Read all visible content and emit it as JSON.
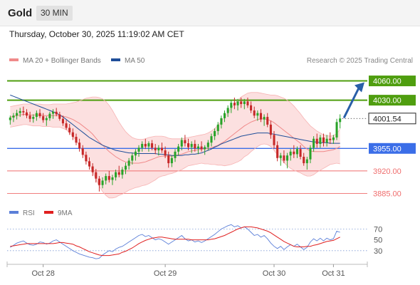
{
  "header": {
    "symbol": "Gold",
    "timeframe": "30 MIN"
  },
  "timestamp": "Thursday, October 30, 2025 11:19:02 AM CET",
  "legend": {
    "items": [
      {
        "label": "MA 20 + Bollinger Bands",
        "color": "#f08a8a"
      },
      {
        "label": "MA 50",
        "color": "#1f4e99"
      }
    ],
    "credit": "Research © 2025 Trading Central"
  },
  "rsi_legend": {
    "items": [
      {
        "label": "RSI",
        "color": "#5b7fd8"
      },
      {
        "label": "9MA",
        "color": "#e02020"
      }
    ]
  },
  "colors": {
    "up": "#29a329",
    "down": "#c62828",
    "resistance": "#4f9e0f",
    "support": "#3b6ee8",
    "minor_support": "#ef6c6c",
    "arrow": "#2a5fa8"
  },
  "chart_data": [
    {
      "type": "candlestick",
      "title": "Gold",
      "timeframe": "30 MIN",
      "ylim": [
        3870,
        4075
      ],
      "x_ticks": [
        "Oct 28",
        "Oct 29",
        "Oct 30",
        "Oct 31"
      ],
      "candles": [
        [
          3999,
          4006,
          3992,
          4003
        ],
        [
          4003,
          4010,
          3996,
          4006
        ],
        [
          4006,
          4015,
          4000,
          4010
        ],
        [
          4010,
          4018,
          4004,
          4013
        ],
        [
          4013,
          4020,
          4006,
          4011
        ],
        [
          4011,
          4016,
          4002,
          4006
        ],
        [
          4006,
          4012,
          3996,
          4001
        ],
        [
          4001,
          4008,
          3995,
          4004
        ],
        [
          4004,
          4014,
          3998,
          4010
        ],
        [
          4010,
          4016,
          4002,
          4005
        ],
        [
          4005,
          4010,
          3995,
          3999
        ],
        [
          3999,
          4005,
          3990,
          4002
        ],
        [
          4002,
          4012,
          3998,
          4009
        ],
        [
          4009,
          4016,
          4001,
          4012
        ],
        [
          4012,
          4018,
          4005,
          4008
        ],
        [
          4008,
          4012,
          3998,
          4001
        ],
        [
          4001,
          4006,
          3990,
          3994
        ],
        [
          3994,
          3999,
          3984,
          3987
        ],
        [
          3987,
          3993,
          3976,
          3980
        ],
        [
          3980,
          3986,
          3968,
          3973
        ],
        [
          3973,
          3978,
          3960,
          3964
        ],
        [
          3964,
          3970,
          3950,
          3955
        ],
        [
          3955,
          3960,
          3940,
          3945
        ],
        [
          3945,
          3950,
          3930,
          3935
        ],
        [
          3935,
          3941,
          3922,
          3927
        ],
        [
          3927,
          3932,
          3912,
          3918
        ],
        [
          3918,
          3923,
          3902,
          3908
        ],
        [
          3908,
          3912,
          3888,
          3898
        ],
        [
          3898,
          3910,
          3893,
          3905
        ],
        [
          3905,
          3916,
          3899,
          3912
        ],
        [
          3912,
          3920,
          3902,
          3906
        ],
        [
          3906,
          3914,
          3898,
          3910
        ],
        [
          3910,
          3922,
          3905,
          3918
        ],
        [
          3918,
          3928,
          3910,
          3914
        ],
        [
          3914,
          3926,
          3908,
          3922
        ],
        [
          3922,
          3933,
          3915,
          3928
        ],
        [
          3928,
          3940,
          3922,
          3936
        ],
        [
          3936,
          3948,
          3930,
          3944
        ],
        [
          3944,
          3954,
          3936,
          3950
        ],
        [
          3950,
          3960,
          3942,
          3956
        ],
        [
          3956,
          3966,
          3950,
          3962
        ],
        [
          3962,
          3970,
          3954,
          3958
        ],
        [
          3958,
          3966,
          3950,
          3963
        ],
        [
          3963,
          3968,
          3952,
          3956
        ],
        [
          3956,
          3962,
          3946,
          3952
        ],
        [
          3952,
          3960,
          3944,
          3956
        ],
        [
          3956,
          3964,
          3948,
          3952
        ],
        [
          3952,
          3958,
          3940,
          3944
        ],
        [
          3944,
          3950,
          3925,
          3932
        ],
        [
          3932,
          3944,
          3926,
          3940
        ],
        [
          3940,
          3954,
          3934,
          3950
        ],
        [
          3950,
          3962,
          3944,
          3958
        ],
        [
          3958,
          3972,
          3952,
          3968
        ],
        [
          3968,
          3976,
          3958,
          3963
        ],
        [
          3963,
          3970,
          3952,
          3957
        ],
        [
          3957,
          3966,
          3948,
          3962
        ],
        [
          3962,
          3968,
          3950,
          3955
        ],
        [
          3955,
          3962,
          3946,
          3958
        ],
        [
          3958,
          3966,
          3950,
          3954
        ],
        [
          3954,
          3960,
          3945,
          3957
        ],
        [
          3957,
          3968,
          3952,
          3964
        ],
        [
          3964,
          3978,
          3958,
          3974
        ],
        [
          3974,
          3986,
          3968,
          3982
        ],
        [
          3982,
          3996,
          3976,
          3992
        ],
        [
          3992,
          4006,
          3986,
          4002
        ],
        [
          4002,
          4014,
          3996,
          4010
        ],
        [
          4010,
          4022,
          4004,
          4018
        ],
        [
          4018,
          4030,
          4010,
          4026
        ],
        [
          4026,
          4034,
          4016,
          4022
        ],
        [
          4022,
          4032,
          4014,
          4028
        ],
        [
          4028,
          4034,
          4018,
          4024
        ],
        [
          4024,
          4032,
          4016,
          4028
        ],
        [
          4028,
          4034,
          4018,
          4022
        ],
        [
          4022,
          4028,
          4010,
          4014
        ],
        [
          4014,
          4020,
          4002,
          4006
        ],
        [
          4006,
          4014,
          3998,
          4010
        ],
        [
          4010,
          4016,
          3996,
          4000
        ],
        [
          4000,
          4008,
          3990,
          4004
        ],
        [
          4004,
          4010,
          3988,
          3992
        ],
        [
          3992,
          3998,
          3970,
          3976
        ],
        [
          3976,
          3982,
          3955,
          3960
        ],
        [
          3960,
          3966,
          3935,
          3940
        ],
        [
          3940,
          3948,
          3928,
          3944
        ],
        [
          3944,
          3952,
          3932,
          3936
        ],
        [
          3936,
          3948,
          3924,
          3944
        ],
        [
          3944,
          3954,
          3936,
          3950
        ],
        [
          3950,
          3960,
          3940,
          3946
        ],
        [
          3946,
          3958,
          3940,
          3954
        ],
        [
          3954,
          3960,
          3938,
          3942
        ],
        [
          3942,
          3948,
          3928,
          3932
        ],
        [
          3932,
          3942,
          3922,
          3938
        ],
        [
          3938,
          3960,
          3932,
          3956
        ],
        [
          3956,
          3974,
          3950,
          3970
        ],
        [
          3970,
          3978,
          3956,
          3962
        ],
        [
          3962,
          3976,
          3956,
          3972
        ],
        [
          3972,
          3978,
          3958,
          3964
        ],
        [
          3964,
          3976,
          3958,
          3970
        ],
        [
          3970,
          3980,
          3962,
          3968
        ],
        [
          3968,
          3976,
          3962,
          3972
        ],
        [
          3972,
          4001,
          3968,
          3996
        ],
        [
          3996,
          4008,
          3986,
          4001.54
        ]
      ],
      "ma20": [
        4004,
        4005,
        4006,
        4007,
        4008,
        4008,
        4007,
        4007,
        4007,
        4007,
        4006,
        4006,
        4006,
        4006,
        4006,
        4006,
        4005,
        4004,
        4002,
        4000,
        3997,
        3994,
        3990,
        3986,
        3982,
        3977,
        3971,
        3965,
        3960,
        3955,
        3950,
        3946,
        3942,
        3939,
        3936,
        3934,
        3933,
        3932,
        3932,
        3932,
        3933,
        3934,
        3936,
        3938,
        3940,
        3942,
        3943,
        3943,
        3943,
        3943,
        3944,
        3945,
        3946,
        3948,
        3950,
        3951,
        3952,
        3953,
        3954,
        3954,
        3955,
        3956,
        3958,
        3960,
        3963,
        3966,
        3970,
        3974,
        3978,
        3982,
        3986,
        3990,
        3993,
        3996,
        3998,
        4000,
        4001,
        4001,
        4000,
        3998,
        3995,
        3991,
        3987,
        3983,
        3979,
        3975,
        3971,
        3967,
        3963,
        3958,
        3954,
        3951,
        3950,
        3950,
        3950,
        3950,
        3951,
        3952,
        3953,
        3955,
        3958
      ],
      "bb_upper": [
        4020,
        4021,
        4022,
        4023,
        4024,
        4024,
        4024,
        4024,
        4024,
        4024,
        4023,
        4023,
        4023,
        4024,
        4024,
        4024,
        4024,
        4024,
        4025,
        4026,
        4027,
        4029,
        4031,
        4033,
        4034,
        4035,
        4035,
        4034,
        4032,
        4028,
        4022,
        4014,
        4005,
        3996,
        3988,
        3981,
        3976,
        3972,
        3970,
        3969,
        3969,
        3970,
        3972,
        3973,
        3974,
        3974,
        3974,
        3973,
        3971,
        3970,
        3970,
        3970,
        3970,
        3971,
        3972,
        3973,
        3974,
        3975,
        3976,
        3977,
        3979,
        3982,
        3986,
        3991,
        3997,
        4004,
        4011,
        4018,
        4024,
        4030,
        4035,
        4038,
        4041,
        4042,
        4042,
        4042,
        4041,
        4040,
        4039,
        4038,
        4038,
        4037,
        4035,
        4033,
        4030,
        4026,
        4021,
        4015,
        4009,
        4002,
        3996,
        3990,
        3986,
        3982,
        3979,
        3976,
        3975,
        3974,
        3975,
        3978,
        3985
      ],
      "bb_lower": [
        3988,
        3989,
        3990,
        3991,
        3992,
        3992,
        3991,
        3990,
        3990,
        3990,
        3989,
        3989,
        3989,
        3988,
        3988,
        3988,
        3986,
        3984,
        3979,
        3974,
        3967,
        3959,
        3949,
        3939,
        3930,
        3919,
        3907,
        3896,
        3888,
        3882,
        3878,
        3878,
        3879,
        3882,
        3884,
        3887,
        3890,
        3892,
        3894,
        3895,
        3897,
        3898,
        3900,
        3903,
        3906,
        3910,
        3912,
        3913,
        3915,
        3916,
        3918,
        3920,
        3922,
        3925,
        3928,
        3929,
        3930,
        3931,
        3932,
        3931,
        3931,
        3930,
        3930,
        3929,
        3929,
        3928,
        3929,
        3930,
        3932,
        3934,
        3937,
        3942,
        3945,
        3950,
        3954,
        3958,
        3961,
        3962,
        3961,
        3958,
        3952,
        3945,
        3939,
        3933,
        3928,
        3924,
        3921,
        3919,
        3917,
        3914,
        3912,
        3912,
        3914,
        3918,
        3921,
        3924,
        3927,
        3930,
        3931,
        3932,
        3931
      ],
      "ma50": [
        4038,
        4036,
        4034,
        4032,
        4030,
        4028,
        4026,
        4024,
        4022,
        4020,
        4018,
        4016,
        4014,
        4012,
        4010,
        4007,
        4004,
        4000,
        3996,
        3992,
        3988,
        3984,
        3980,
        3976,
        3972,
        3969,
        3966,
        3963,
        3960,
        3958,
        3956,
        3954,
        3952,
        3951,
        3950,
        3949,
        3948,
        3948,
        3947,
        3947,
        3947,
        3947,
        3947,
        3947,
        3947,
        3946,
        3946,
        3945,
        3945,
        3944,
        3944,
        3944,
        3944,
        3945,
        3945,
        3946,
        3946,
        3947,
        3948,
        3950,
        3952,
        3954,
        3957,
        3959,
        3962,
        3964,
        3966,
        3968,
        3970,
        3972,
        3974,
        3975,
        3976,
        3977,
        3978,
        3979,
        3979,
        3979,
        3979,
        3978,
        3977,
        3976,
        3975,
        3974,
        3973,
        3972,
        3971,
        3970,
        3969,
        3968,
        3967,
        3966,
        3965,
        3965,
        3964,
        3964,
        3964,
        3963,
        3963,
        3963,
        3963
      ],
      "levels": [
        {
          "label": "4060.00",
          "value": 4060,
          "kind": "resistance"
        },
        {
          "label": "4030.00",
          "value": 4030,
          "kind": "resistance"
        },
        {
          "label": "3955.00",
          "value": 3955,
          "kind": "support"
        },
        {
          "label": "3920.00",
          "value": 3920,
          "kind": "minor_support"
        },
        {
          "label": "3885.00",
          "value": 3885,
          "kind": "minor_support"
        }
      ],
      "last_price": {
        "label": "4001.54",
        "value": 4001.54
      },
      "arrow": {
        "from": 4001.54,
        "to": 4060
      },
      "legend": [
        "MA 20 + Bollinger Bands",
        "MA 50"
      ]
    },
    {
      "type": "line",
      "title": "RSI",
      "ylim": [
        10,
        85
      ],
      "yticks": [
        30,
        50,
        70
      ],
      "reference_lines": [
        30,
        70
      ],
      "series": [
        {
          "name": "RSI",
          "values": [
            36,
            40,
            44,
            46,
            48,
            44,
            41,
            40,
            42,
            46,
            45,
            42,
            44,
            48,
            50,
            46,
            42,
            38,
            34,
            30,
            27,
            24,
            22,
            20,
            18,
            17,
            15,
            16,
            22,
            26,
            30,
            28,
            33,
            36,
            38,
            42,
            46,
            50,
            54,
            58,
            60,
            56,
            58,
            54,
            50,
            52,
            50,
            46,
            42,
            46,
            50,
            54,
            58,
            52,
            48,
            50,
            46,
            48,
            45,
            48,
            52,
            56,
            60,
            65,
            70,
            73,
            76,
            78,
            74,
            76,
            72,
            74,
            70,
            64,
            58,
            60,
            55,
            58,
            52,
            44,
            38,
            34,
            38,
            32,
            37,
            41,
            38,
            42,
            37,
            32,
            36,
            46,
            52,
            48,
            53,
            48,
            53,
            50,
            52,
            66,
            64
          ]
        },
        {
          "name": "9MA",
          "values": [
            38,
            39,
            40,
            41,
            42,
            43,
            43,
            43,
            43,
            43,
            43,
            43,
            43,
            43,
            44,
            45,
            45,
            44,
            43,
            42,
            39,
            37,
            34,
            31,
            28,
            26,
            24,
            22,
            21,
            21,
            21,
            22,
            23,
            24,
            27,
            29,
            32,
            35,
            39,
            43,
            46,
            49,
            51,
            53,
            54,
            55,
            55,
            54,
            53,
            52,
            51,
            51,
            51,
            51,
            51,
            50,
            50,
            50,
            50,
            50,
            50,
            51,
            52,
            54,
            56,
            58,
            61,
            64,
            67,
            70,
            72,
            74,
            74,
            74,
            73,
            72,
            70,
            68,
            66,
            63,
            59,
            55,
            51,
            47,
            44,
            41,
            38,
            37,
            37,
            37,
            38,
            38,
            40,
            41,
            43,
            45,
            47,
            48,
            49,
            52,
            55
          ]
        }
      ]
    }
  ]
}
